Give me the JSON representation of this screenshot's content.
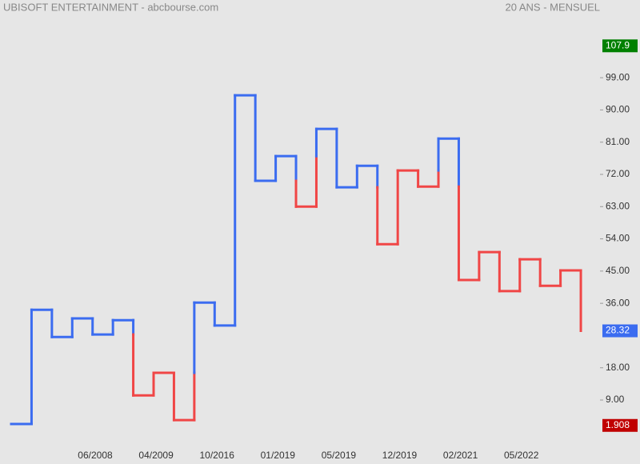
{
  "chart_data": {
    "type": "kagi",
    "title": "UBISOFT ENTERTAINMENT - abcbourse.com",
    "subtitle": "20 ANS - MENSUEL",
    "values": [
      2.3,
      34.2,
      26.6,
      31.8,
      27.3,
      31.3,
      10.3,
      16.6,
      3.4,
      36.2,
      29.8,
      94.1,
      70.2,
      77.1,
      63.0,
      84.7,
      68.4,
      74.4,
      52.5,
      73.1,
      68.6,
      82.0,
      42.5,
      50.3,
      39.4,
      48.3,
      40.9,
      45.2,
      28.32
    ],
    "colors": {
      "yang": "#3b6cf0",
      "yin": "#f04646"
    },
    "x_labels": [
      "06/2008",
      "04/2009",
      "10/2016",
      "01/2019",
      "05/2019",
      "12/2019",
      "02/2021",
      "05/2022"
    ],
    "ylim": [
      -4.4,
      120.7
    ],
    "yticks": [
      {
        "value": 9,
        "label": "9.00"
      },
      {
        "value": 18,
        "label": "18.00"
      },
      {
        "value": 36,
        "label": "36.00"
      },
      {
        "value": 45,
        "label": "45.00"
      },
      {
        "value": 54,
        "label": "54.00"
      },
      {
        "value": 63,
        "label": "63.00"
      },
      {
        "value": 72,
        "label": "72.00"
      },
      {
        "value": 81,
        "label": "81.00"
      },
      {
        "value": 90,
        "label": "90.00"
      },
      {
        "value": 99,
        "label": "99.00"
      }
    ],
    "markers": [
      {
        "value": 107.9,
        "color": "#008000"
      },
      {
        "value": 28.32,
        "color": "#3b6cf0"
      },
      {
        "value": 1.908,
        "color": "#c00000"
      }
    ]
  }
}
